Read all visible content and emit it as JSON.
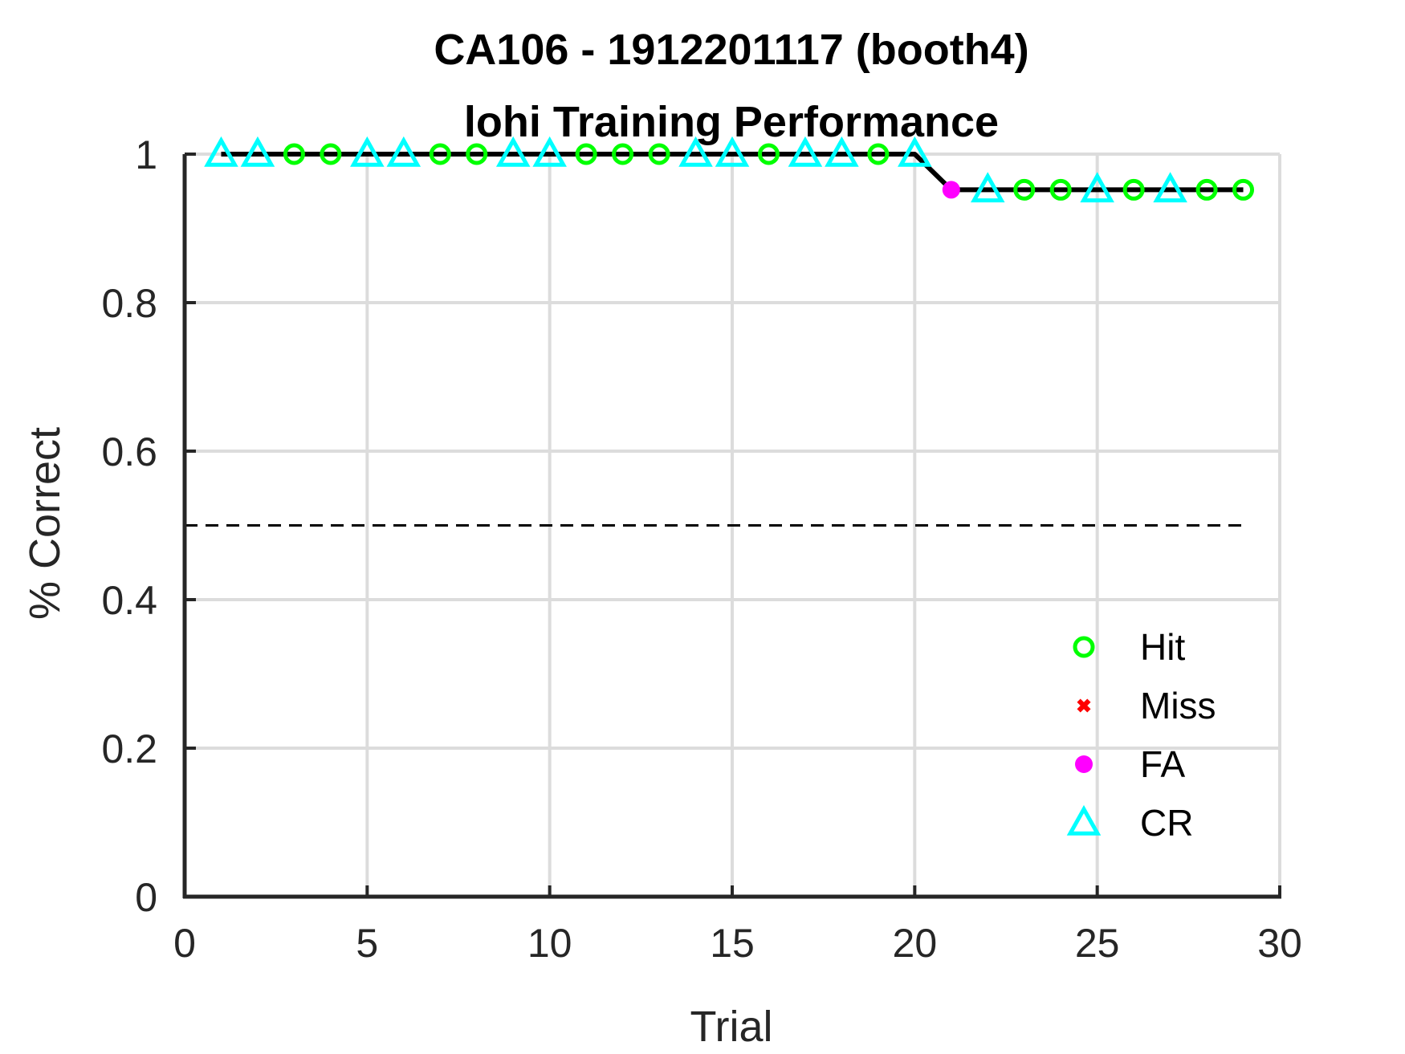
{
  "chart_data": {
    "type": "line",
    "title_lines": [
      "CA106 - 1912201117 (booth4)",
      "lohi Training Performance"
    ],
    "xlabel": "Trial",
    "ylabel": "% Correct",
    "xlim": [
      0,
      30
    ],
    "ylim": [
      0,
      1
    ],
    "x_ticks": [
      0,
      5,
      10,
      15,
      20,
      25,
      30
    ],
    "y_ticks": [
      0,
      0.2,
      0.4,
      0.6,
      0.8,
      1
    ],
    "y_tick_labels": [
      "0",
      "0.2",
      "0.4",
      "0.6",
      "0.8",
      "1"
    ],
    "grid": true,
    "chance_line": {
      "y": 0.5,
      "x_range": [
        0,
        29
      ],
      "style": "dashed",
      "color": "#000000"
    },
    "performance": {
      "color": "#000000",
      "x": [
        1,
        2,
        3,
        4,
        5,
        6,
        7,
        8,
        9,
        10,
        11,
        12,
        13,
        14,
        15,
        16,
        17,
        18,
        19,
        20,
        21,
        22,
        23,
        24,
        25,
        26,
        27,
        28,
        29
      ],
      "y": [
        1,
        1,
        1,
        1,
        1,
        1,
        1,
        1,
        1,
        1,
        1,
        1,
        1,
        1,
        1,
        1,
        1,
        1,
        1,
        1,
        0.952,
        0.952,
        0.952,
        0.952,
        0.952,
        0.952,
        0.952,
        0.952,
        0.952
      ],
      "outcome": [
        "CR",
        "CR",
        "Hit",
        "Hit",
        "CR",
        "CR",
        "Hit",
        "Hit",
        "CR",
        "CR",
        "Hit",
        "Hit",
        "Hit",
        "CR",
        "CR",
        "Hit",
        "CR",
        "CR",
        "Hit",
        "CR",
        "FA",
        "CR",
        "Hit",
        "Hit",
        "CR",
        "Hit",
        "CR",
        "Hit",
        "Hit"
      ]
    },
    "legend": {
      "placement": "bottom-right",
      "entries": [
        {
          "label": "Hit",
          "marker": "circle",
          "color": "#00ff00"
        },
        {
          "label": "Miss",
          "marker": "x",
          "color": "#ff0000"
        },
        {
          "label": "FA",
          "marker": "dot",
          "color": "#ff00ff"
        },
        {
          "label": "CR",
          "marker": "triangle",
          "color": "#00ffff"
        }
      ]
    }
  }
}
